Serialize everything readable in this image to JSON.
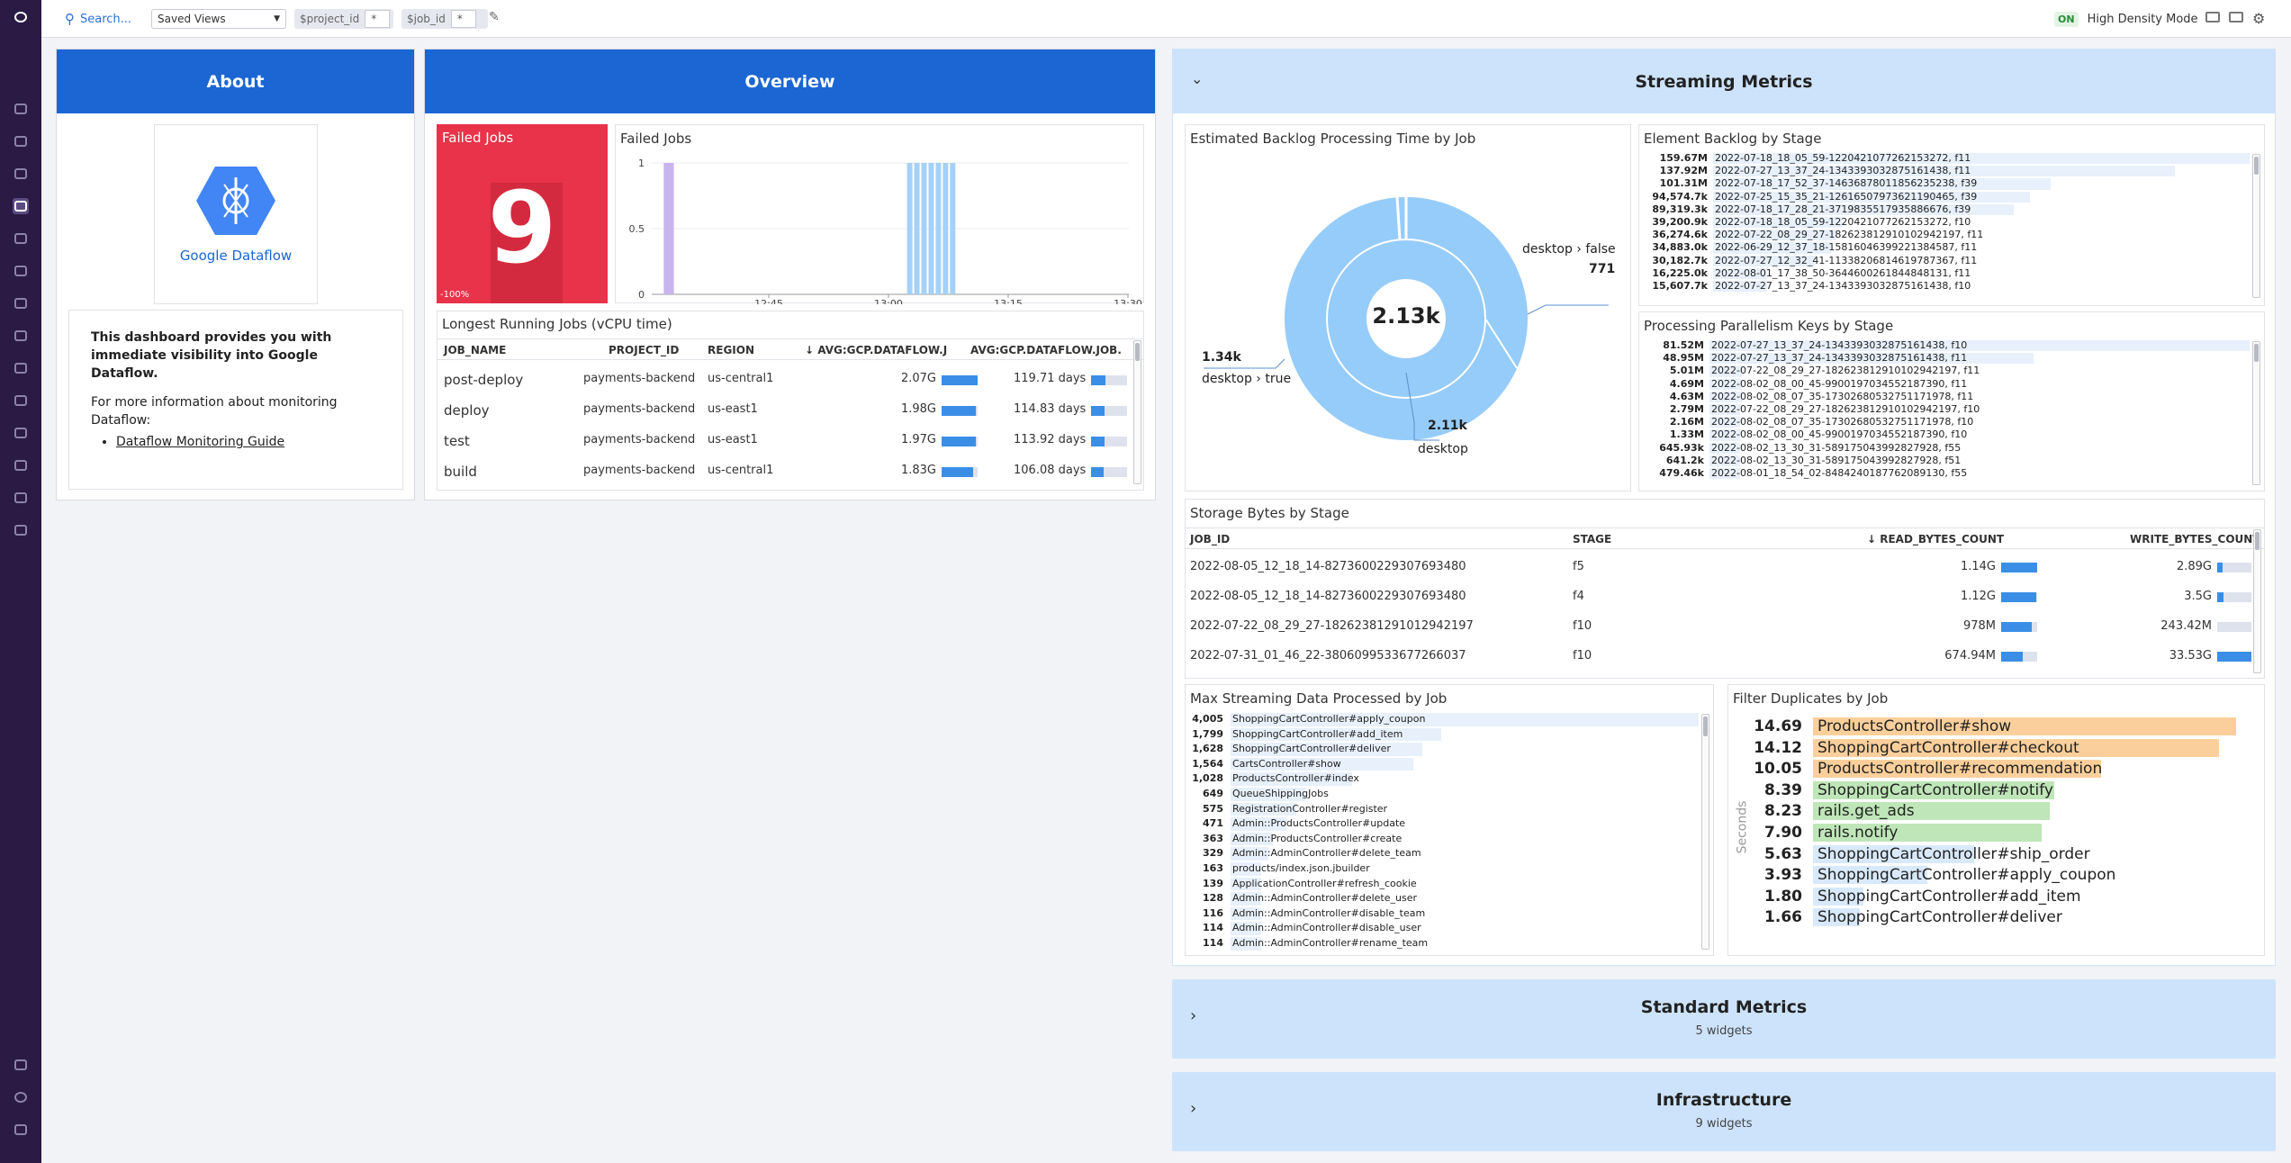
{
  "topbar": {
    "search": "Search...",
    "saved_views": "Saved Views",
    "vars": [
      {
        "name": "$project_id",
        "value": "*"
      },
      {
        "name": "$job_id",
        "value": "*"
      }
    ],
    "toggle": "ON",
    "hdm": "High Density Mode"
  },
  "about": {
    "title": "About",
    "logo_text": "Google Dataflow",
    "desc": "This dashboard provides you with immediate visibility into Google Dataflow.",
    "more": "For more information about monitoring Dataflow:",
    "link": "Dataflow Monitoring Guide"
  },
  "overview": {
    "title": "Overview",
    "failed_tile": {
      "label": "Failed Jobs",
      "value": "9",
      "delta": "-100%"
    },
    "failed_chart": {
      "title": "Failed Jobs",
      "yticks": [
        "1",
        "0.5",
        "0"
      ],
      "xticks": [
        "12:45",
        "13:00",
        "13:15",
        "13:30"
      ],
      "bars": [
        {
          "t": 0.01,
          "v": 1,
          "color": "#c9b5ee"
        },
        {
          "t": 0.02,
          "v": 1,
          "color": "#c9b5ee"
        },
        {
          "t": 0.52,
          "v": 1,
          "color": "#a6d1f7"
        },
        {
          "t": 0.535,
          "v": 1,
          "color": "#a6d1f7"
        },
        {
          "t": 0.55,
          "v": 1,
          "color": "#a6d1f7"
        },
        {
          "t": 0.565,
          "v": 1,
          "color": "#a6d1f7"
        },
        {
          "t": 0.58,
          "v": 1,
          "color": "#a6d1f7"
        },
        {
          "t": 0.595,
          "v": 1,
          "color": "#a6d1f7"
        },
        {
          "t": 0.61,
          "v": 1,
          "color": "#a6d1f7"
        }
      ]
    },
    "longest": {
      "title": "Longest Running Jobs (vCPU time)",
      "cols": [
        "JOB_NAME",
        "PROJECT_ID",
        "REGION",
        "↓ AVG:GCP.DATAFLOW.JO...",
        "AVG:GCP.DATAFLOW.JOB.E..."
      ],
      "rows": [
        {
          "job": "post-deploy",
          "project": "payments-backend",
          "region": "us-central1",
          "v1": "2.07G",
          "f1": 1.0,
          "v2": "119.71 days",
          "f2": 0.4
        },
        {
          "job": "deploy",
          "project": "payments-backend",
          "region": "us-east1",
          "v1": "1.98G",
          "f1": 0.96,
          "v2": "114.83 days",
          "f2": 0.38
        },
        {
          "job": "test",
          "project": "payments-backend",
          "region": "us-east1",
          "v1": "1.97G",
          "f1": 0.95,
          "v2": "113.92 days",
          "f2": 0.38
        },
        {
          "job": "build",
          "project": "payments-backend",
          "region": "us-central1",
          "v1": "1.83G",
          "f1": 0.88,
          "v2": "106.08 days",
          "f2": 0.35
        }
      ]
    }
  },
  "streaming": {
    "title": "Streaming Metrics",
    "backlog_time": {
      "title": "Estimated Backlog Processing Time by Job",
      "center": "2.13k",
      "labels": [
        {
          "a": "desktop › false",
          "b": "771"
        },
        {
          "a": "1.34k",
          "b": "desktop › true"
        },
        {
          "a": "2.11k",
          "b": "desktop"
        }
      ]
    },
    "element_backlog": {
      "title": "Element Backlog by Stage",
      "rows": [
        [
          "159.67M",
          "2022-07-18_18_05_59-12204210772621532​72, f11",
          1.0
        ],
        [
          "137.92M",
          "2022-07-27_13_37_24-13433930328751614​38, f11",
          0.86
        ],
        [
          "101.31M",
          "2022-07-18_17_52_37-14636878011856235​238, f39",
          0.63
        ],
        [
          "94,574.7k",
          "2022-07-25_15_35_21-12616507973621190​465, f39",
          0.59
        ],
        [
          "89,319.3k",
          "2022-07-18_17_28_21-37198355179358866​76, f39",
          0.56
        ],
        [
          "39,200.9k",
          "2022-07-18_18_05_59-12204210772621532​72, f10",
          0.24
        ],
        [
          "36,274.6k",
          "2022-07-22_08_29_27-18262381291010294​2197, f11",
          0.23
        ],
        [
          "34,883.0k",
          "2022-06-29_12_37_18-15816046399221384​587, f11",
          0.22
        ],
        [
          "30,182.7k",
          "2022-07-27_12_32_41-11338206814619787​367, f11",
          0.19
        ],
        [
          "16,225.0k",
          "2022-08-01_17_38_50-36446002618448481​31, f11",
          0.1
        ],
        [
          "15,607.7k",
          "2022-07-27_13_37_24-13433930328751614​38, f10",
          0.1
        ]
      ]
    },
    "parallelism": {
      "title": "Processing Parallelism Keys by Stage",
      "rows": [
        [
          "81.52M",
          "2022-07-27_13_37_24-13433930328751614​38, f10",
          1.0
        ],
        [
          "48.95M",
          "2022-07-27_13_37_24-13433930328751614​38, f11",
          0.6
        ],
        [
          "5.01M",
          "2022-07-22_08_29_27-18262381291010294​2197, f11",
          0.06
        ],
        [
          "4.69M",
          "2022-08-02_08_00_45-99001970345521873​90, f11",
          0.06
        ],
        [
          "4.63M",
          "2022-08-02_08_07_35-17302680532751171​978, f11",
          0.06
        ],
        [
          "2.79M",
          "2022-07-22_08_29_27-18262381291010294​2197, f10",
          0.03
        ],
        [
          "2.16M",
          "2022-08-02_08_07_35-17302680532751171​978, f10",
          0.03
        ],
        [
          "1.33M",
          "2022-08-02_08_00_45-99001970345521873​90, f10",
          0.02
        ],
        [
          "645.93k",
          "2022-08-02_13_30_31-58917504399282792​8, f55",
          0.01
        ],
        [
          "641.2k",
          "2022-08-02_13_30_31-58917504399282792​8, f51",
          0.01
        ],
        [
          "479.46k",
          "2022-08-01_18_54_02-84842401877620891​30, f55",
          0.01
        ]
      ]
    },
    "storage": {
      "title": "Storage Bytes by Stage",
      "cols": [
        "JOB_ID",
        "STAGE",
        "↓ READ_BYTES_COUNT",
        "WRITE_BYTES_COUNT"
      ],
      "rows": [
        {
          "job": "2022-08-05_12_18_14-8273600229307693480",
          "stage": "f5",
          "read": "1.14G",
          "rf": 1.0,
          "write": "2.89G",
          "wf": 0.15
        },
        {
          "job": "2022-08-05_12_18_14-8273600229307693480",
          "stage": "f4",
          "read": "1.12G",
          "rf": 0.98,
          "write": "3.5G",
          "wf": 0.18
        },
        {
          "job": "2022-07-22_08_29_27-1826238129101294​2197",
          "stage": "f10",
          "read": "978M",
          "rf": 0.86,
          "write": "243.42M",
          "wf": 0.0
        },
        {
          "job": "2022-07-31_01_46_22-3806099533677266037",
          "stage": "f10",
          "read": "674.94M",
          "rf": 0.6,
          "write": "33.53G",
          "wf": 1.0
        }
      ]
    },
    "max_stream": {
      "title": "Max Streaming Data Processed by Job",
      "rows": [
        [
          "4,005",
          "ShoppingCartController#apply_coupon",
          1.0
        ],
        [
          "1,799",
          "ShoppingCartController#add_item",
          0.45
        ],
        [
          "1,628",
          "ShoppingCartController#deliver",
          0.41
        ],
        [
          "1,564",
          "CartsController#show",
          0.39
        ],
        [
          "1,028",
          "ProductsController#index",
          0.26
        ],
        [
          "649",
          "QueueShippingJobs",
          0.16
        ],
        [
          "575",
          "RegistrationController#register",
          0.14
        ],
        [
          "471",
          "Admin::ProductsController#update",
          0.12
        ],
        [
          "363",
          "Admin::ProductsController#create",
          0.09
        ],
        [
          "329",
          "Admin::AdminController#delete_team",
          0.08
        ],
        [
          "163",
          "products/index.json.jbuilder",
          0.04
        ],
        [
          "139",
          "ApplicationController#refresh_cookie",
          0.03
        ],
        [
          "128",
          "Admin::AdminController#delete_user",
          0.03
        ],
        [
          "116",
          "Admin::AdminController#disable_team",
          0.03
        ],
        [
          "114",
          "Admin::AdminController#disable_user",
          0.03
        ],
        [
          "114",
          "Admin::AdminController#rename_team",
          0.03
        ]
      ]
    },
    "filter_dup": {
      "title": "Filter Duplicates by Job",
      "axis": "Seconds",
      "rows": [
        [
          "14.69",
          "ProductsController#show",
          1.0,
          "#fbcf9b"
        ],
        [
          "14.12",
          "ShoppingCartController#checkout",
          0.96,
          "#fbcf9b"
        ],
        [
          "10.05",
          "ProductsController#recommendation",
          0.68,
          "#fbcf9b"
        ],
        [
          "8.39",
          "ShoppingCartController#notify",
          0.57,
          "#bfe6b8"
        ],
        [
          "8.23",
          "rails.get_ads",
          0.56,
          "#bfe6b8"
        ],
        [
          "7.90",
          "rails.notify",
          0.54,
          "#bfe6b8"
        ],
        [
          "5.63",
          "ShoppingCartController#ship_order",
          0.38,
          "#d8e9fb"
        ],
        [
          "3.93",
          "ShoppingCartController#apply_coupon",
          0.27,
          "#d8e9fb"
        ],
        [
          "1.80",
          "ShoppingCartController#add_item",
          0.12,
          "#d8e9fb"
        ],
        [
          "1.66",
          "ShoppingCartController#deliver",
          0.11,
          "#d8e9fb"
        ]
      ]
    }
  },
  "standard": {
    "title": "Standard Metrics",
    "sub": "5 widgets"
  },
  "infra": {
    "title": "Infrastructure",
    "sub": "9 widgets"
  }
}
